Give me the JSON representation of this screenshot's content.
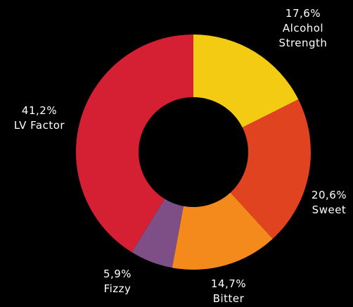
{
  "chart_data": {
    "type": "pie",
    "donut": true,
    "labels": [
      "Alcohol Strength",
      "Sweet",
      "Bitter",
      "Fizzy",
      "LV Factor"
    ],
    "label_lines": [
      [
        "Alcohol",
        "Strength"
      ],
      [
        "Sweet"
      ],
      [
        "Bitter"
      ],
      [
        "Fizzy"
      ],
      [
        "LV Factor"
      ]
    ],
    "values": [
      17.6,
      20.6,
      14.7,
      5.9,
      41.2
    ],
    "value_labels": [
      "17,6%",
      "20,6%",
      "14,7%",
      "5,9%",
      "41,2%"
    ],
    "colors": [
      "#f3cb12",
      "#e0431f",
      "#f48a1c",
      "#7e4e86",
      "#d51f33"
    ],
    "background": "#000000",
    "title": "",
    "legend": "none"
  }
}
